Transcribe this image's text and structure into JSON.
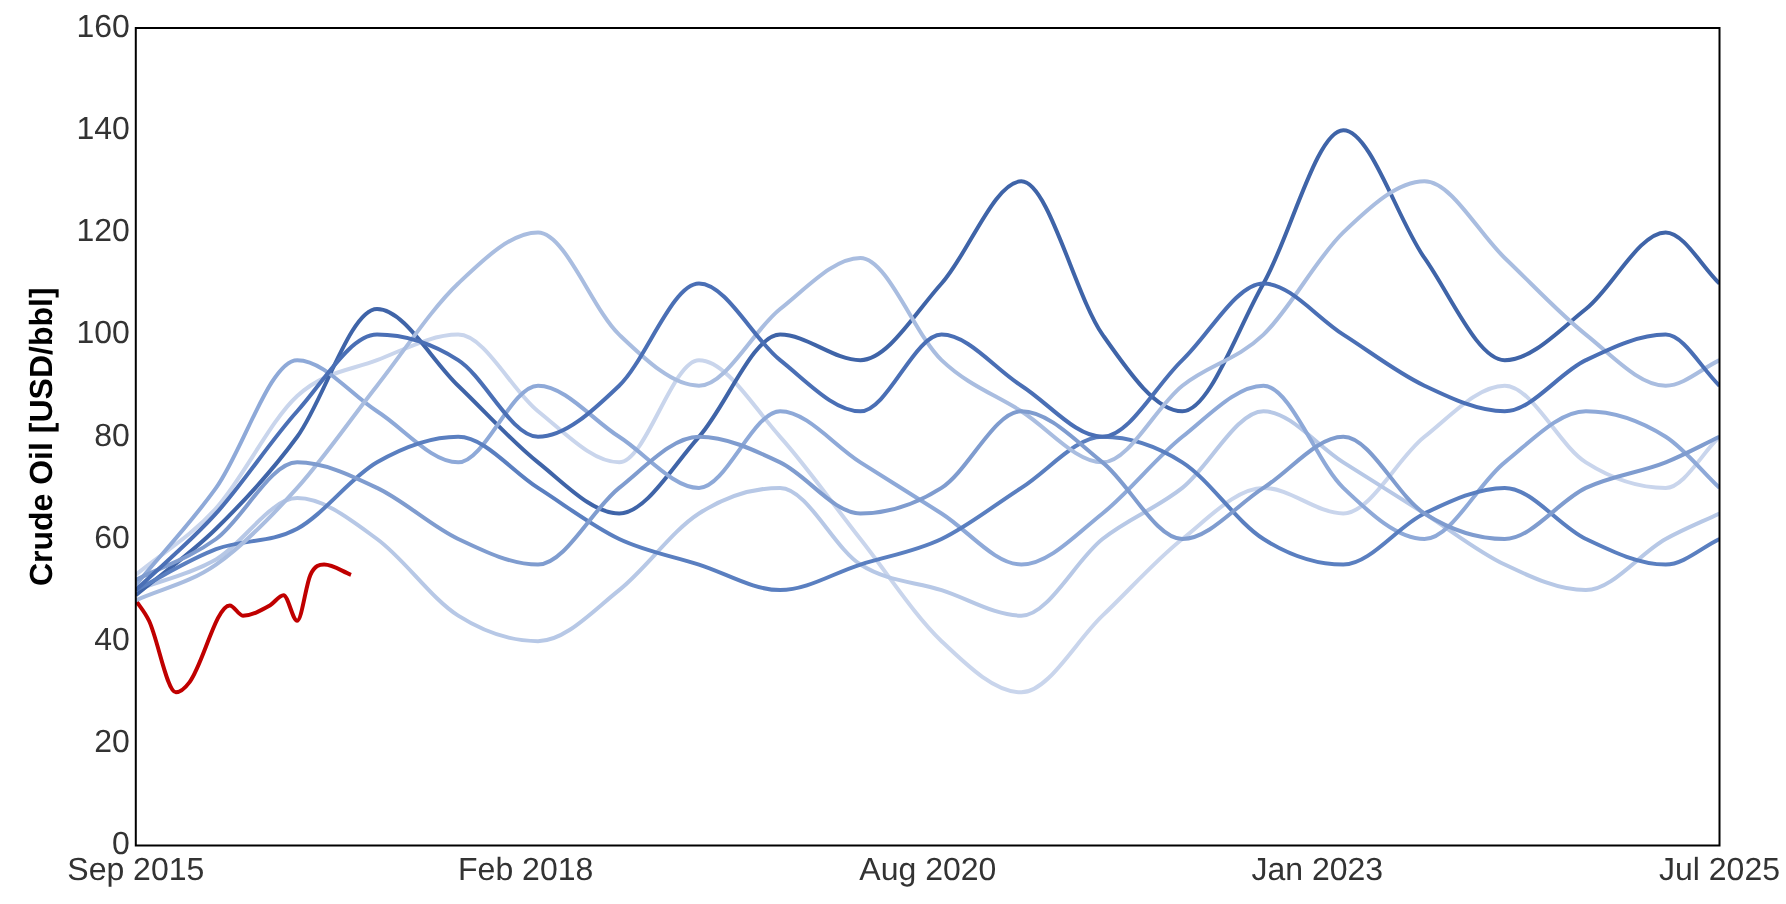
{
  "chart_data": {
    "type": "line",
    "ylabel": "Crude Oil [USD/bbl]",
    "x": [
      "2015-09",
      "2016-03",
      "2016-09",
      "2017-03",
      "2017-09",
      "2018-03",
      "2018-09",
      "2019-03",
      "2019-09",
      "2020-03",
      "2020-09",
      "2021-03",
      "2021-09",
      "2022-03",
      "2022-09",
      "2023-03",
      "2023-09",
      "2024-03",
      "2024-09",
      "2025-03",
      "2025-07"
    ],
    "xlim": [
      "2015-09",
      "2025-07"
    ],
    "xticks": [
      {
        "value": "2015-09",
        "label": "Sep 2015"
      },
      {
        "value": "2018-02",
        "label": "Feb 2018"
      },
      {
        "value": "2020-08",
        "label": "Aug 2020"
      },
      {
        "value": "2023-01",
        "label": "Jan 2023"
      },
      {
        "value": "2025-07",
        "label": "Jul 2025"
      }
    ],
    "ylim": [
      0,
      160
    ],
    "yticks": [
      0,
      20,
      40,
      60,
      80,
      100,
      120,
      140,
      160
    ],
    "grid": false,
    "legend": false,
    "marker": "none",
    "line_style": "solid",
    "series": [
      {
        "color": "#4a6fb5",
        "values": [
          50,
          65,
          85,
          100,
          95,
          80,
          90,
          110,
          95,
          85,
          100,
          90,
          80,
          95,
          110,
          100,
          90,
          85,
          95,
          100,
          90
        ]
      },
      {
        "color": "#7f9ccf",
        "values": [
          52,
          60,
          75,
          70,
          60,
          55,
          70,
          80,
          75,
          65,
          70,
          85,
          75,
          60,
          70,
          80,
          65,
          60,
          70,
          75,
          80
        ]
      },
      {
        "color": "#a9bde0",
        "values": [
          48,
          55,
          70,
          90,
          110,
          120,
          100,
          90,
          105,
          115,
          95,
          85,
          75,
          90,
          100,
          120,
          130,
          115,
          100,
          90,
          95
        ]
      },
      {
        "color": "#5a7fc0",
        "values": [
          50,
          58,
          62,
          75,
          80,
          70,
          60,
          55,
          50,
          55,
          60,
          70,
          80,
          75,
          60,
          55,
          65,
          70,
          60,
          55,
          60
        ]
      },
      {
        "color": "#8ea9d8",
        "values": [
          51,
          70,
          95,
          85,
          75,
          90,
          80,
          70,
          85,
          75,
          65,
          55,
          65,
          80,
          90,
          70,
          60,
          75,
          85,
          80,
          70
        ]
      },
      {
        "color": "#3f64a8",
        "values": [
          49,
          62,
          80,
          105,
          90,
          75,
          65,
          80,
          100,
          95,
          110,
          130,
          100,
          85,
          110,
          140,
          115,
          95,
          105,
          120,
          110
        ]
      },
      {
        "color": "#b7c8e6",
        "values": [
          50,
          56,
          68,
          60,
          45,
          40,
          50,
          65,
          70,
          55,
          50,
          45,
          60,
          70,
          85,
          75,
          65,
          55,
          50,
          60,
          65
        ]
      },
      {
        "color": "#c9d5ec",
        "values": [
          53,
          66,
          88,
          95,
          100,
          85,
          75,
          95,
          80,
          60,
          40,
          30,
          45,
          60,
          70,
          65,
          80,
          90,
          75,
          70,
          80
        ]
      },
      {
        "color": "#c00000",
        "x": [
          "2015-09",
          "2015-10",
          "2015-12",
          "2016-01",
          "2016-04",
          "2016-05",
          "2016-07",
          "2016-08",
          "2016-09",
          "2016-10",
          "2016-11",
          "2017-01"
        ],
        "values": [
          48,
          44,
          30,
          32,
          47,
          45,
          47,
          49,
          44,
          53,
          55,
          53
        ]
      }
    ]
  }
}
